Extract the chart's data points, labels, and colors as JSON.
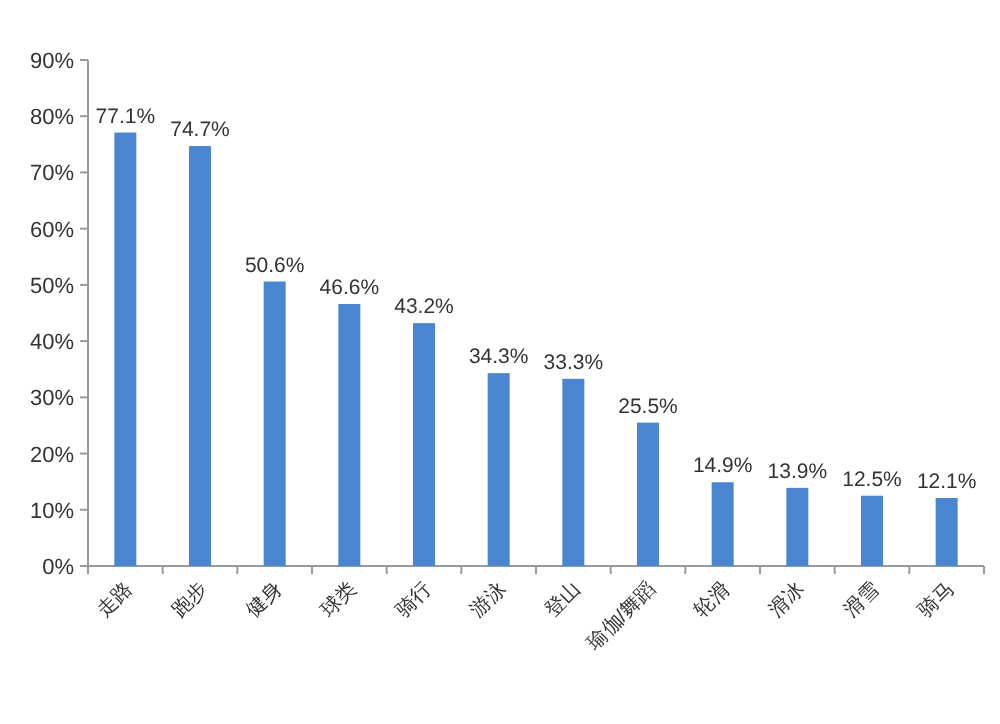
{
  "chart_data": {
    "type": "bar",
    "categories": [
      "走路",
      "跑步",
      "健身",
      "球类",
      "骑行",
      "游泳",
      "登山",
      "瑜伽/舞蹈",
      "轮滑",
      "滑冰",
      "滑雪",
      "骑马"
    ],
    "values": [
      77.1,
      74.7,
      50.6,
      46.6,
      43.2,
      34.3,
      33.3,
      25.5,
      14.9,
      13.9,
      12.5,
      12.1
    ],
    "value_labels": [
      "77.1%",
      "74.7%",
      "50.6%",
      "46.6%",
      "43.2%",
      "34.3%",
      "33.3%",
      "25.5%",
      "14.9%",
      "13.9%",
      "12.5%",
      "12.1%"
    ],
    "color": "#4a86d0",
    "ylim": [
      0,
      90
    ],
    "yticks": [
      {
        "value": 0,
        "label": "0%"
      },
      {
        "value": 10,
        "label": "10%"
      },
      {
        "value": 20,
        "label": "20%"
      },
      {
        "value": 30,
        "label": "30%"
      },
      {
        "value": 40,
        "label": "40%"
      },
      {
        "value": 50,
        "label": "50%"
      },
      {
        "value": 60,
        "label": "60%"
      },
      {
        "value": 70,
        "label": "70%"
      },
      {
        "value": 80,
        "label": "80%"
      },
      {
        "value": 90,
        "label": "90%"
      }
    ],
    "grid": false
  }
}
